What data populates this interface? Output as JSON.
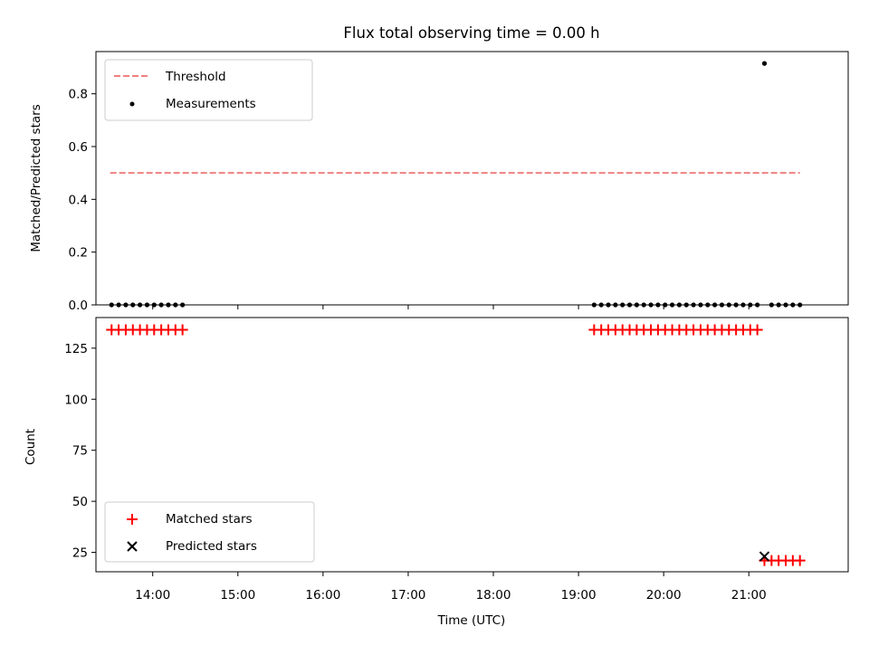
{
  "chart_data": [
    {
      "type": "scatter",
      "title": "Flux total observing time = 0.00 h",
      "xlabel": "",
      "ylabel": "Matched/Predicted stars",
      "ylim": [
        0,
        0.96
      ],
      "yticks": [
        0.0,
        0.2,
        0.4,
        0.6,
        0.8
      ],
      "ytick_labels": [
        "0.0",
        "0.2",
        "0.4",
        "0.6",
        "0.8"
      ],
      "xlim": [
        "13:20",
        "22:10"
      ],
      "legend_placement": "top-left",
      "legend": [
        "Threshold",
        "Measurements"
      ],
      "threshold": {
        "name": "Threshold",
        "y": 0.5,
        "x_start": "13:30",
        "x_end": "21:36",
        "color": "#f08080"
      },
      "measurements": {
        "name": "Measurements",
        "color": "#000000",
        "x": [
          "13:31",
          "13:36",
          "13:41",
          "13:46",
          "13:51",
          "13:56",
          "14:01",
          "14:06",
          "14:11",
          "14:16",
          "14:21",
          "19:11",
          "19:16",
          "19:21",
          "19:26",
          "19:31",
          "19:36",
          "19:41",
          "19:46",
          "19:51",
          "19:56",
          "20:01",
          "20:06",
          "20:11",
          "20:16",
          "20:21",
          "20:26",
          "20:31",
          "20:36",
          "20:41",
          "20:46",
          "20:51",
          "20:56",
          "21:01",
          "21:06",
          "21:11",
          "21:16",
          "21:21",
          "21:26",
          "21:31",
          "21:36"
        ],
        "y": [
          0,
          0,
          0,
          0,
          0,
          0,
          0,
          0,
          0,
          0,
          0,
          0,
          0,
          0,
          0,
          0,
          0,
          0,
          0,
          0,
          0,
          0,
          0,
          0,
          0,
          0,
          0,
          0,
          0,
          0,
          0,
          0,
          0,
          0,
          0,
          0.915,
          0,
          0,
          0,
          0,
          0
        ]
      }
    },
    {
      "type": "scatter",
      "title": "",
      "xlabel": "Time (UTC)",
      "ylabel": "Count",
      "ylim": [
        15.5,
        140
      ],
      "yticks": [
        25,
        50,
        75,
        100,
        125
      ],
      "ytick_labels": [
        "25",
        "50",
        "75",
        "100",
        "125"
      ],
      "xlim": [
        "13:20",
        "22:10"
      ],
      "xticks": [
        "14:00",
        "15:00",
        "16:00",
        "17:00",
        "18:00",
        "19:00",
        "20:00",
        "21:00"
      ],
      "xtick_labels": [
        "14:00",
        "15:00",
        "16:00",
        "17:00",
        "18:00",
        "19:00",
        "20:00",
        "21:00"
      ],
      "legend_placement": "bottom-left",
      "legend": [
        "Matched stars",
        "Predicted stars"
      ],
      "matched": {
        "name": "Matched stars",
        "color": "#ff0000",
        "x": [
          "13:31",
          "13:36",
          "13:41",
          "13:46",
          "13:51",
          "13:56",
          "14:01",
          "14:06",
          "14:11",
          "14:16",
          "14:21",
          "19:11",
          "19:16",
          "19:21",
          "19:26",
          "19:31",
          "19:36",
          "19:41",
          "19:46",
          "19:51",
          "19:56",
          "20:01",
          "20:06",
          "20:11",
          "20:16",
          "20:21",
          "20:26",
          "20:31",
          "20:36",
          "20:41",
          "20:46",
          "20:51",
          "20:56",
          "21:01",
          "21:06",
          "21:11",
          "21:16",
          "21:21",
          "21:26",
          "21:31",
          "21:36"
        ],
        "y": [
          134,
          134,
          134,
          134,
          134,
          134,
          134,
          134,
          134,
          134,
          134,
          134,
          134,
          134,
          134,
          134,
          134,
          134,
          134,
          134,
          134,
          134,
          134,
          134,
          134,
          134,
          134,
          134,
          134,
          134,
          134,
          134,
          134,
          134,
          134,
          21,
          21,
          21,
          21,
          21,
          21
        ]
      },
      "predicted": {
        "name": "Predicted stars",
        "color": "#000000",
        "x": [
          "21:11"
        ],
        "y": [
          23
        ]
      }
    }
  ]
}
